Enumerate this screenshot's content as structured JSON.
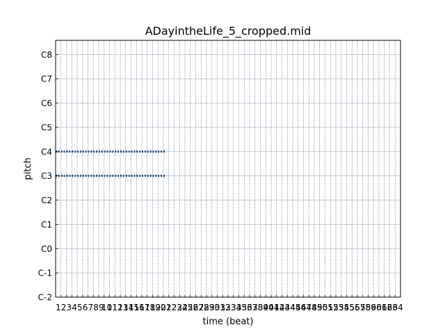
{
  "chart_data": {
    "type": "piano-roll",
    "title": "ADayintheLife_5_cropped.mid",
    "xlabel": "time (beat)",
    "ylabel": "pitch",
    "xlim": [
      0,
      64
    ],
    "ylim": [
      0,
      127
    ],
    "x_ticks": [
      1,
      2,
      3,
      4,
      5,
      6,
      7,
      8,
      9,
      10,
      11,
      12,
      13,
      14,
      15,
      16,
      17,
      18,
      19,
      20,
      21,
      22,
      23,
      24,
      25,
      26,
      27,
      28,
      29,
      30,
      31,
      32,
      33,
      34,
      35,
      36,
      37,
      38,
      39,
      40,
      41,
      42,
      43,
      44,
      45,
      46,
      47,
      48,
      49,
      50,
      51,
      52,
      53,
      54,
      55,
      56,
      57,
      58,
      59,
      60,
      61,
      62,
      63,
      64
    ],
    "y_ticks": [
      {
        "label": "C-2",
        "pitch": 0
      },
      {
        "label": "C-1",
        "pitch": 12
      },
      {
        "label": "C0",
        "pitch": 24
      },
      {
        "label": "C1",
        "pitch": 36
      },
      {
        "label": "C2",
        "pitch": 48
      },
      {
        "label": "C3",
        "pitch": 60
      },
      {
        "label": "C4",
        "pitch": 72
      },
      {
        "label": "C5",
        "pitch": 84
      },
      {
        "label": "C6",
        "pitch": 96
      },
      {
        "label": "C7",
        "pitch": 108
      },
      {
        "label": "C8",
        "pitch": 120
      }
    ],
    "grid": true,
    "note_color": "#1f4e79",
    "series": [
      {
        "pitch": 72,
        "start": 0,
        "end": 20.25,
        "note_length": 0.25,
        "step": 0.5
      },
      {
        "pitch": 60,
        "start": 0,
        "end": 20.25,
        "note_length": 0.25,
        "step": 0.5
      }
    ]
  }
}
